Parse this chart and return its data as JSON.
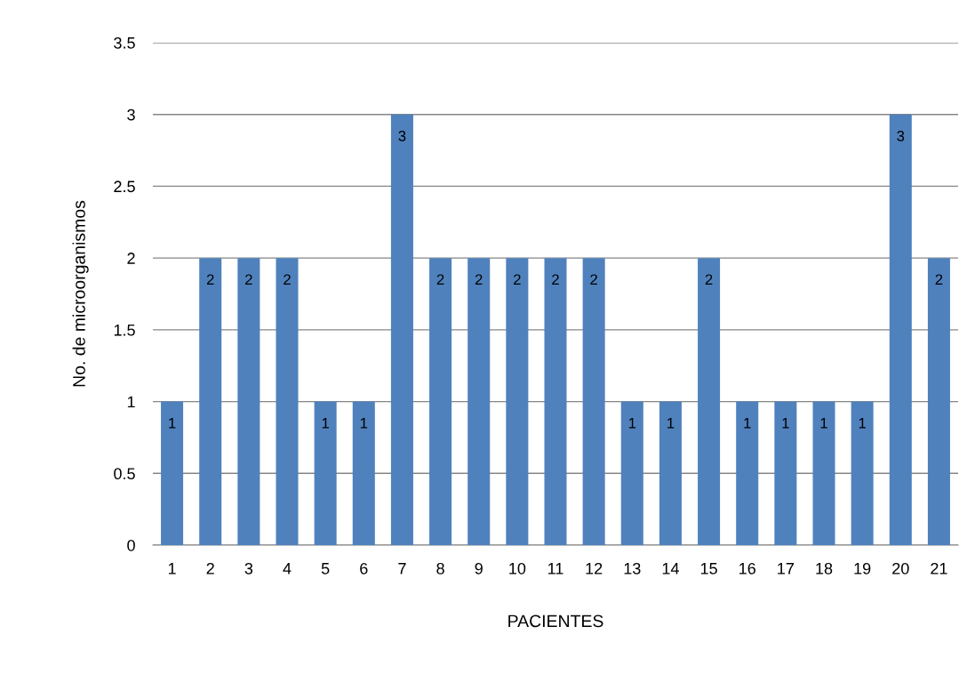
{
  "chart_data": {
    "type": "bar",
    "xlabel": "PACIENTES",
    "ylabel": "No. de microorganismos",
    "categories": [
      "1",
      "2",
      "3",
      "4",
      "5",
      "6",
      "7",
      "8",
      "9",
      "10",
      "11",
      "12",
      "13",
      "14",
      "15",
      "16",
      "17",
      "18",
      "19",
      "20",
      "21"
    ],
    "values": [
      1,
      2,
      2,
      2,
      1,
      1,
      3,
      2,
      2,
      2,
      2,
      2,
      1,
      1,
      2,
      1,
      1,
      1,
      1,
      3,
      2
    ],
    "color": "#4f81bd",
    "ylim": [
      0,
      3.5
    ],
    "yticks": [
      0,
      0.5,
      1,
      1.5,
      2,
      2.5,
      3,
      3.5
    ],
    "grid": "y",
    "data_labels": true,
    "legend": false
  }
}
